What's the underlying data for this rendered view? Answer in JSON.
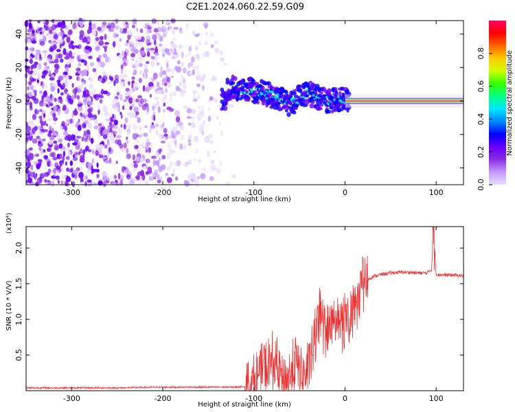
{
  "title": "C2E1.2024.060.22.59.G09",
  "chart_data": [
    {
      "type": "heatmap",
      "name": "spectrogram",
      "xlabel": "Height of straight line (km)",
      "ylabel": "Frequency (Hz)",
      "xlim": [
        -350,
        130
      ],
      "ylim": [
        -50,
        48
      ],
      "xticks": [
        -300,
        -200,
        -100,
        0,
        100
      ],
      "yticks": [
        -40,
        -20,
        0,
        20,
        40
      ],
      "colorbar": {
        "label": "Normalized spectral amplitude",
        "range": [
          0,
          1
        ],
        "ticks": [
          "0.0",
          "0.2",
          "0.4",
          "0.6",
          "0.8"
        ],
        "colors": [
          "#eaddff",
          "#c49aff",
          "#8a2be2",
          "#6600ff",
          "#0000ff",
          "#0088ff",
          "#00e5ff",
          "#00ff88",
          "#33ff00",
          "#ccff00",
          "#ffcc00",
          "#ff6600",
          "#ff0000",
          "#ff0066"
        ]
      },
      "ridge_track": [
        {
          "x": -130,
          "y": 8
        },
        {
          "x": -110,
          "y": 7
        },
        {
          "x": -100,
          "y": 6
        },
        {
          "x": -90,
          "y": 5
        },
        {
          "x": -80,
          "y": 3
        },
        {
          "x": -70,
          "y": 1
        },
        {
          "x": -60,
          "y": -2
        },
        {
          "x": -50,
          "y": 2
        },
        {
          "x": -40,
          "y": 5
        },
        {
          "x": -30,
          "y": 2
        },
        {
          "x": -20,
          "y": 0
        },
        {
          "x": -10,
          "y": 1
        },
        {
          "x": 0,
          "y": 1
        },
        {
          "x": 20,
          "y": 0
        },
        {
          "x": 60,
          "y": 0
        },
        {
          "x": 90,
          "y": 0
        },
        {
          "x": 130,
          "y": 0
        }
      ]
    },
    {
      "type": "line",
      "name": "snr",
      "xlabel": "Height of straight line (km)",
      "ylabel": "SNR (10 * V/V)",
      "scale_label": "(x10⁴)",
      "xlim": [
        -350,
        130
      ],
      "ylim": [
        0,
        2.3
      ],
      "xticks": [
        -300,
        -200,
        -100,
        0,
        100
      ],
      "yticks": [
        "0.5",
        "1.0",
        "1.5",
        "2.0"
      ],
      "color": "#ee3333",
      "series": [
        {
          "x": [
            -350,
            -300,
            -250,
            -200,
            -150,
            -120,
            -110,
            -100,
            -95,
            -90,
            -85,
            -80,
            -75,
            -70,
            -65,
            -60,
            -55,
            -50,
            -45,
            -40,
            -35,
            -30,
            -25,
            -20,
            -15,
            -10,
            -5,
            0,
            5,
            10,
            15,
            20,
            25,
            30,
            40,
            50,
            60,
            70,
            80,
            90,
            95,
            97,
            100,
            110,
            120,
            130
          ],
          "y": [
            0.04,
            0.04,
            0.04,
            0.05,
            0.05,
            0.05,
            0.06,
            0.1,
            0.2,
            0.35,
            0.3,
            0.4,
            0.35,
            0.2,
            0.15,
            0.2,
            0.4,
            0.3,
            0.2,
            0.3,
            0.6,
            0.9,
            1.0,
            0.8,
            0.9,
            0.85,
            0.9,
            1.0,
            1.05,
            1.15,
            1.3,
            1.45,
            1.55,
            1.6,
            1.63,
            1.65,
            1.66,
            1.66,
            1.65,
            1.65,
            1.7,
            2.3,
            1.63,
            1.62,
            1.62,
            1.61
          ]
        }
      ]
    }
  ]
}
